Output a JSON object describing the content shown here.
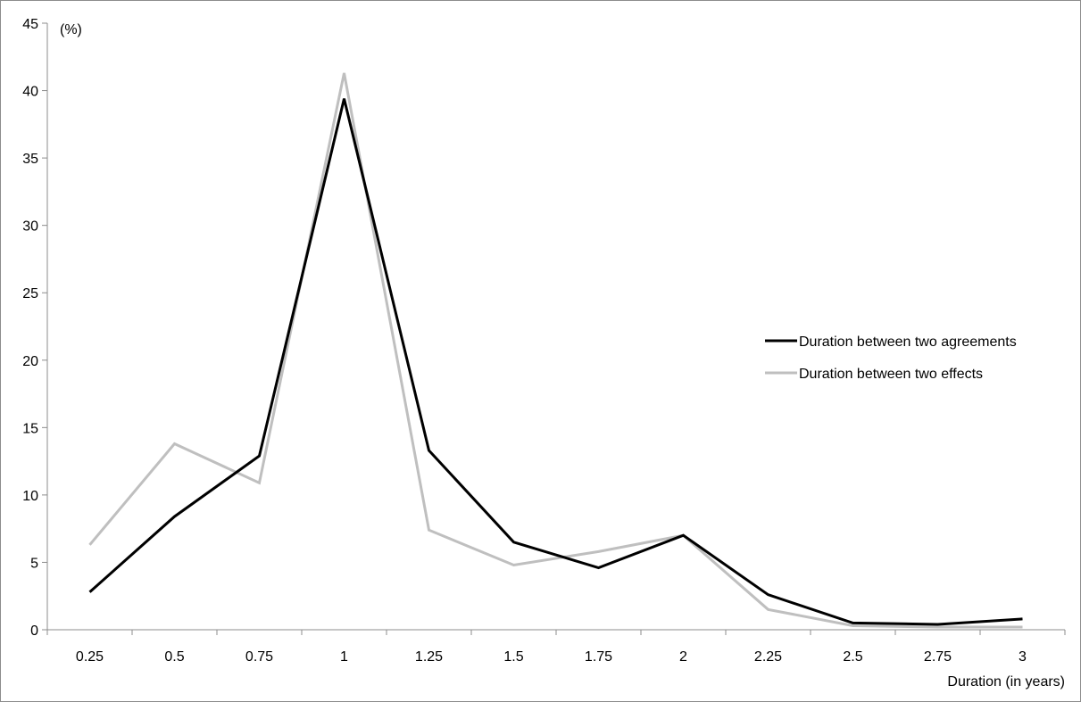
{
  "chart_data": {
    "type": "line",
    "title": "",
    "xlabel": "Duration (in years)",
    "ylabel": "(%)",
    "x": [
      "0.25",
      "0.5",
      "0.75",
      "1",
      "1.25",
      "1.5",
      "1.75",
      "2",
      "2.25",
      "2.5",
      "2.75",
      "3"
    ],
    "yticks": [
      "0",
      "5",
      "10",
      "15",
      "20",
      "25",
      "30",
      "35",
      "40",
      "45"
    ],
    "ylim": [
      0,
      45
    ],
    "grid": false,
    "legend_position": "right",
    "series": [
      {
        "name": "Duration between two agreements",
        "color": "#000000",
        "values": [
          2.8,
          8.4,
          12.9,
          39.4,
          13.3,
          6.5,
          4.6,
          7.0,
          2.6,
          0.5,
          0.4,
          0.8
        ]
      },
      {
        "name": "Duration between two effects",
        "color": "#bfbfbf",
        "values": [
          6.3,
          13.8,
          10.9,
          41.3,
          7.4,
          4.8,
          5.8,
          7.0,
          1.5,
          0.3,
          0.2,
          0.2
        ]
      }
    ]
  }
}
